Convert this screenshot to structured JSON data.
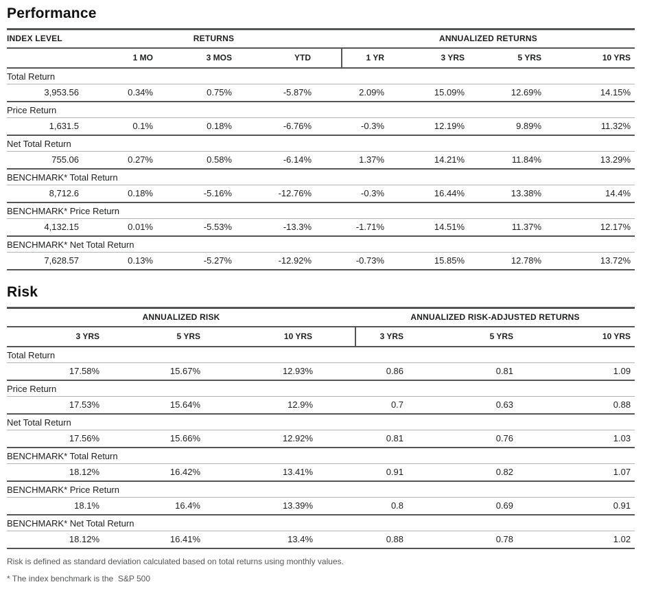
{
  "performance": {
    "title": "Performance",
    "table": {
      "col_groups": {
        "index_level": "INDEX LEVEL",
        "returns": "RETURNS",
        "annualized_returns": "ANNUALIZED RETURNS"
      },
      "columns": [
        "1 MO",
        "3 MOS",
        "YTD",
        "1 YR",
        "3 YRS",
        "5 YRS",
        "10 YRS"
      ],
      "rows": [
        {
          "label": "Total Return",
          "index_level": "3,953.56",
          "values": [
            "0.34%",
            "0.75%",
            "-5.87%",
            "2.09%",
            "15.09%",
            "12.69%",
            "14.15%"
          ]
        },
        {
          "label": "Price Return",
          "index_level": "1,631.5",
          "values": [
            "0.1%",
            "0.18%",
            "-6.76%",
            "-0.3%",
            "12.19%",
            "9.89%",
            "11.32%"
          ]
        },
        {
          "label": "Net Total Return",
          "index_level": "755.06",
          "values": [
            "0.27%",
            "0.58%",
            "-6.14%",
            "1.37%",
            "14.21%",
            "11.84%",
            "13.29%"
          ]
        },
        {
          "label": "BENCHMARK* Total Return",
          "index_level": "8,712.6",
          "values": [
            "0.18%",
            "-5.16%",
            "-12.76%",
            "-0.3%",
            "16.44%",
            "13.38%",
            "14.4%"
          ]
        },
        {
          "label": "BENCHMARK* Price Return",
          "index_level": "4,132.15",
          "values": [
            "0.01%",
            "-5.53%",
            "-13.3%",
            "-1.71%",
            "14.51%",
            "11.37%",
            "12.17%"
          ]
        },
        {
          "label": "BENCHMARK* Net Total Return",
          "index_level": "7,628.57",
          "values": [
            "0.13%",
            "-5.27%",
            "-12.92%",
            "-0.73%",
            "15.85%",
            "12.78%",
            "13.72%"
          ]
        }
      ]
    }
  },
  "risk": {
    "title": "Risk",
    "table": {
      "col_groups": {
        "annualized_risk": "ANNUALIZED RISK",
        "risk_adjusted_returns": "ANNUALIZED RISK-ADJUSTED RETURNS"
      },
      "columns": [
        "3 YRS",
        "5 YRS",
        "10 YRS",
        "3 YRS",
        "5 YRS",
        "10 YRS"
      ],
      "rows": [
        {
          "label": "Total Return",
          "values": [
            "17.58%",
            "15.67%",
            "12.93%",
            "0.86",
            "0.81",
            "1.09"
          ]
        },
        {
          "label": "Price Return",
          "values": [
            "17.53%",
            "15.64%",
            "12.9%",
            "0.7",
            "0.63",
            "0.88"
          ]
        },
        {
          "label": "Net Total Return",
          "values": [
            "17.56%",
            "15.66%",
            "12.92%",
            "0.81",
            "0.76",
            "1.03"
          ]
        },
        {
          "label": "BENCHMARK* Total Return",
          "values": [
            "18.12%",
            "16.42%",
            "13.41%",
            "0.91",
            "0.82",
            "1.07"
          ]
        },
        {
          "label": "BENCHMARK* Price Return",
          "values": [
            "18.1%",
            "16.4%",
            "13.39%",
            "0.8",
            "0.69",
            "0.91"
          ]
        },
        {
          "label": "BENCHMARK* Net Total Return",
          "values": [
            "18.12%",
            "16.41%",
            "13.4%",
            "0.88",
            "0.78",
            "1.02"
          ]
        }
      ]
    }
  },
  "footnotes": {
    "risk_definition": "Risk is defined as standard deviation calculated based on total returns using monthly values.",
    "benchmark": "* The index benchmark is the  S&P 500"
  },
  "colors": {
    "heavy_rule": "#545557",
    "thin_rule": "#b3b4b6",
    "text": "#1d1e20",
    "footnote_text": "#55565a",
    "background": "#ffffff"
  }
}
